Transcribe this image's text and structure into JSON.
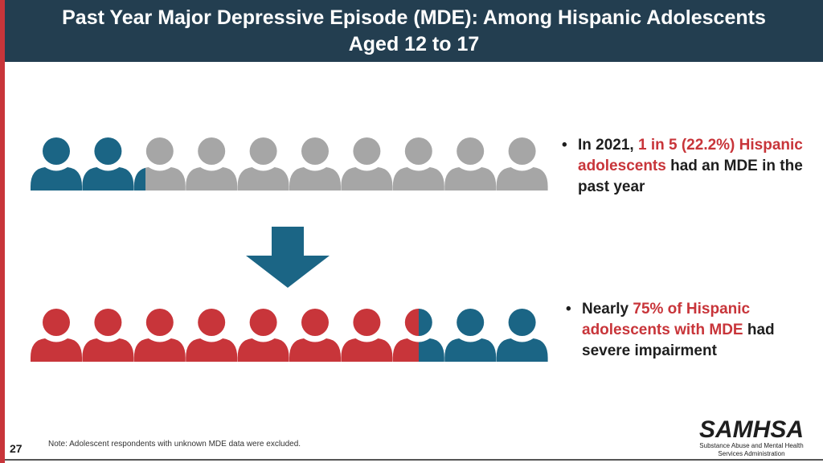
{
  "title": {
    "line1": "Past Year Major Depressive Episode (MDE): Among Hispanic Adolescents",
    "line2": "Aged 12 to 17"
  },
  "colors": {
    "teal": "#1b6585",
    "gray": "#a6a6a6",
    "red": "#c8353a",
    "title_bg": "#233e50"
  },
  "row1": {
    "total": 10,
    "highlighted_fraction": 0.222,
    "highlight_color": "teal",
    "rest_color": "gray"
  },
  "row2": {
    "total": 10,
    "highlighted_fraction": 0.75,
    "highlight_color": "red",
    "rest_color": "teal"
  },
  "bullet1": {
    "pre": "In 2021, ",
    "highlight": "1 in 5 (22.2%) Hispanic adolescents",
    "post": " had an MDE in the past year"
  },
  "bullet2": {
    "pre": "Nearly ",
    "highlight": "75% of Hispanic adolescents with MDE",
    "post": " had severe impairment"
  },
  "page_number": "27",
  "note": "Note: Adolescent respondents with unknown MDE data were excluded.",
  "logo": {
    "word": "SAMHSA",
    "sub1": "Substance Abuse and Mental Health",
    "sub2": "Services Administration"
  }
}
